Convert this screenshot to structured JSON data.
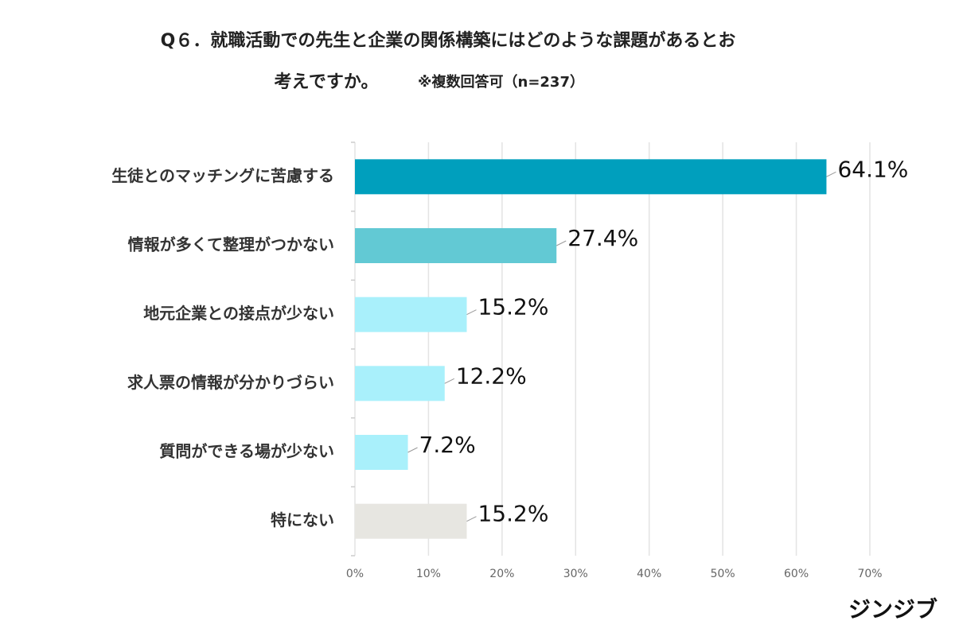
{
  "chart_data": {
    "type": "barh",
    "title_lines": [
      "Q６．就職活動での先生と企業の関係構築にはどのような課題があるとお",
      "考えですか。"
    ],
    "subtitle": "※複数回答可（n=237）",
    "categories": [
      "生徒とのマッチングに苦慮する",
      "情報が多くて整理がつかない",
      "地元企業との接点が少ない",
      "求人票の情報が分かりづらい",
      "質問ができる場が少ない",
      "特にない"
    ],
    "values": [
      64.1,
      27.4,
      15.2,
      12.2,
      7.2,
      15.2
    ],
    "value_labels": [
      "64.1%",
      "27.4%",
      "15.2%",
      "12.2%",
      "7.2%",
      "15.2%"
    ],
    "colors": [
      "#009fbd",
      "#62c9d4",
      "#a9f0fb",
      "#a9f0fb",
      "#a9f0fb",
      "#e7e6e1"
    ],
    "xlim": [
      0,
      70
    ],
    "xticks": [
      {
        "value": 0,
        "label": "0%"
      },
      {
        "value": 10,
        "label": "10%"
      },
      {
        "value": 20,
        "label": "20%"
      },
      {
        "value": 30,
        "label": "30%"
      },
      {
        "value": 40,
        "label": "40%"
      },
      {
        "value": 50,
        "label": "50%"
      },
      {
        "value": 60,
        "label": "60%"
      },
      {
        "value": 70,
        "label": "70%"
      }
    ],
    "grid": true,
    "brand": "ジンジブ"
  }
}
